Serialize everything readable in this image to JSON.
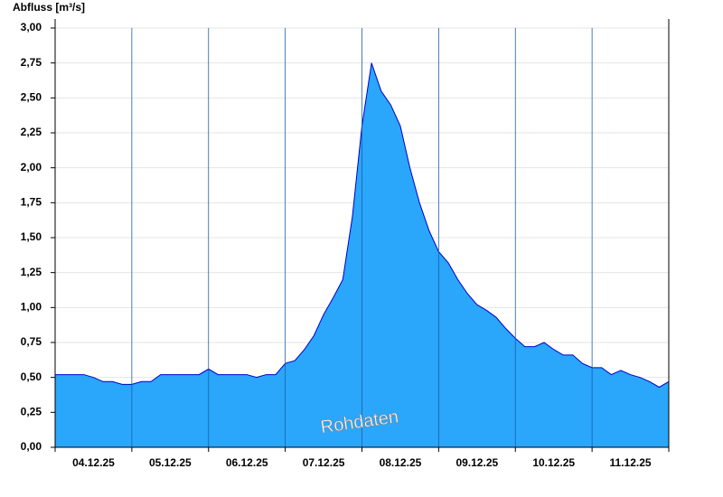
{
  "chart_data": {
    "type": "area",
    "y_axis_label": "Abfluss [m³/s]",
    "annotation": "Rohdaten",
    "date_labels": [
      "04.12.25",
      "05.12.25",
      "06.12.25",
      "07.12.25",
      "08.12.25",
      "09.12.25",
      "10.12.25",
      "11.12.25"
    ],
    "values": [
      0.52,
      0.52,
      0.52,
      0.52,
      0.5,
      0.47,
      0.47,
      0.45,
      0.45,
      0.47,
      0.47,
      0.52,
      0.52,
      0.52,
      0.52,
      0.52,
      0.56,
      0.52,
      0.52,
      0.52,
      0.52,
      0.5,
      0.52,
      0.52,
      0.6,
      0.62,
      0.7,
      0.8,
      0.95,
      1.07,
      1.2,
      1.65,
      2.3,
      2.75,
      2.55,
      2.45,
      2.3,
      2.0,
      1.75,
      1.55,
      1.4,
      1.32,
      1.2,
      1.1,
      1.02,
      0.98,
      0.93,
      0.85,
      0.78,
      0.72,
      0.72,
      0.75,
      0.7,
      0.66,
      0.66,
      0.6,
      0.57,
      0.57,
      0.52,
      0.55,
      0.52,
      0.5,
      0.47,
      0.43,
      0.47
    ],
    "color": "#2aa6fb",
    "line_color": "#0000c8",
    "ylim": [
      0,
      3
    ],
    "yticks": [
      {
        "value": 0,
        "label": "0,00"
      },
      {
        "value": 0.25,
        "label": "0,25"
      },
      {
        "value": 0.5,
        "label": "0,50"
      },
      {
        "value": 0.75,
        "label": "0,75"
      },
      {
        "value": 1,
        "label": "1,00"
      },
      {
        "value": 1.25,
        "label": "1,25"
      },
      {
        "value": 1.5,
        "label": "1,50"
      },
      {
        "value": 1.75,
        "label": "1,75"
      },
      {
        "value": 2,
        "label": "2,00"
      },
      {
        "value": 2.25,
        "label": "2,25"
      },
      {
        "value": 2.5,
        "label": "2,50"
      },
      {
        "value": 2.75,
        "label": "2,75"
      },
      {
        "value": 3,
        "label": "3,00"
      }
    ],
    "grid": true
  }
}
